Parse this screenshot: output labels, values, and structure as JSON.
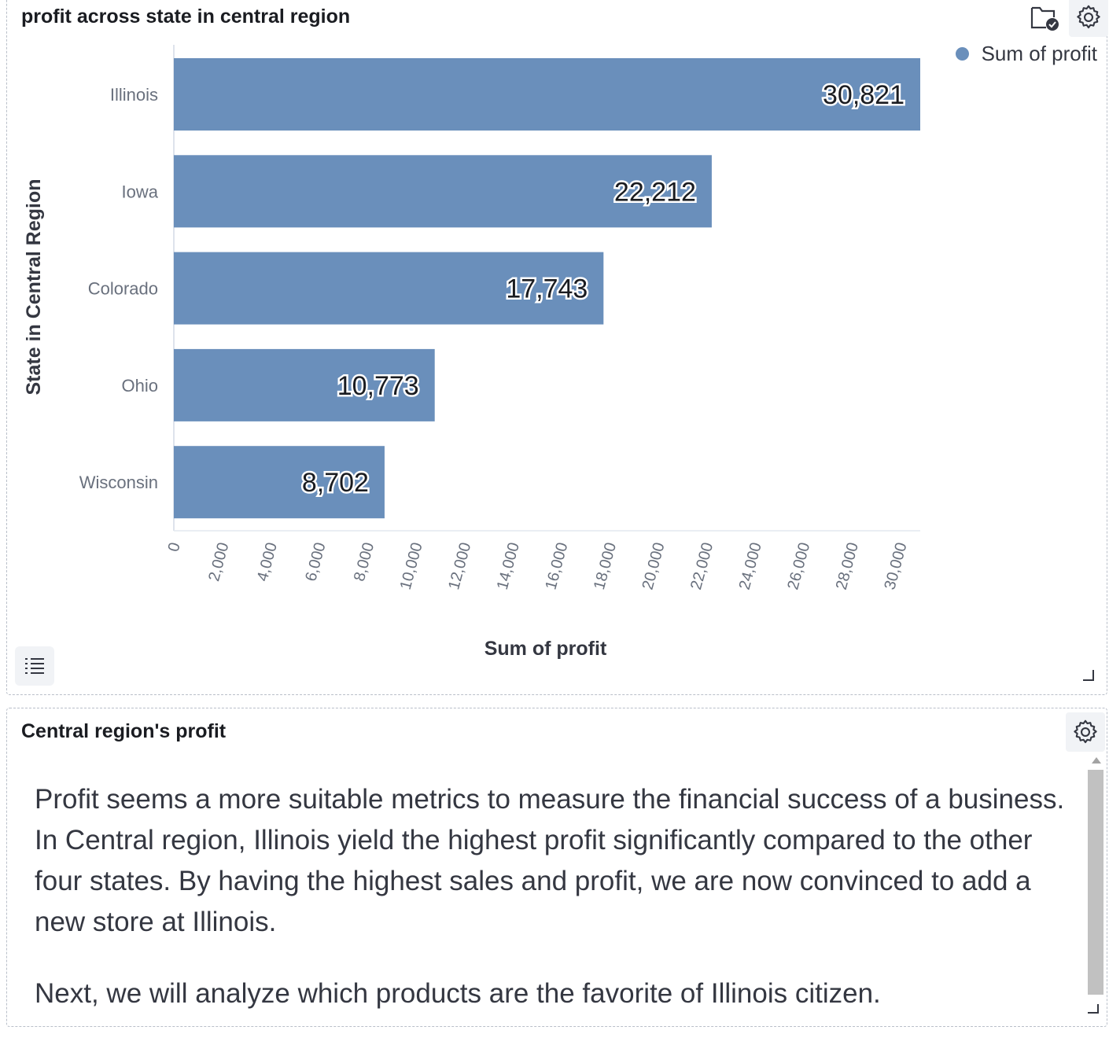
{
  "chart_panel": {
    "title": "profit across state in central region",
    "legend_label": "Sum of profit",
    "icons": [
      "folder-check-icon",
      "gear-icon",
      "list-icon"
    ]
  },
  "chart_data": {
    "type": "bar",
    "orientation": "horizontal",
    "categories": [
      "Illinois",
      "Iowa",
      "Colorado",
      "Ohio",
      "Wisconsin"
    ],
    "values": [
      30821,
      22212,
      17743,
      10773,
      8702
    ],
    "value_labels": [
      "30,821",
      "22,212",
      "17,743",
      "10,773",
      "8,702"
    ],
    "xlabel": "Sum of profit",
    "ylabel": "State in Central Region",
    "xlim": [
      0,
      30821
    ],
    "x_ticks": [
      0,
      2000,
      4000,
      6000,
      8000,
      10000,
      12000,
      14000,
      16000,
      18000,
      20000,
      22000,
      24000,
      26000,
      28000,
      30000
    ],
    "x_tick_labels": [
      "0",
      "2,000",
      "4,000",
      "6,000",
      "8,000",
      "10,000",
      "12,000",
      "14,000",
      "16,000",
      "18,000",
      "20,000",
      "22,000",
      "24,000",
      "26,000",
      "28,000",
      "30,000"
    ],
    "series_color": "#6a8fbb",
    "legend": "top-right"
  },
  "text_panel": {
    "title": "Central region's profit",
    "paragraphs": [
      "Profit seems a more suitable metrics to measure the financial success of a business. In Central region, Illinois yield the highest profit significantly compared to the other four states. By having the highest sales and profit, we are now convinced to add a new store at Illinois.",
      "Next, we will analyze which products are the favorite of Illinois citizen."
    ]
  }
}
